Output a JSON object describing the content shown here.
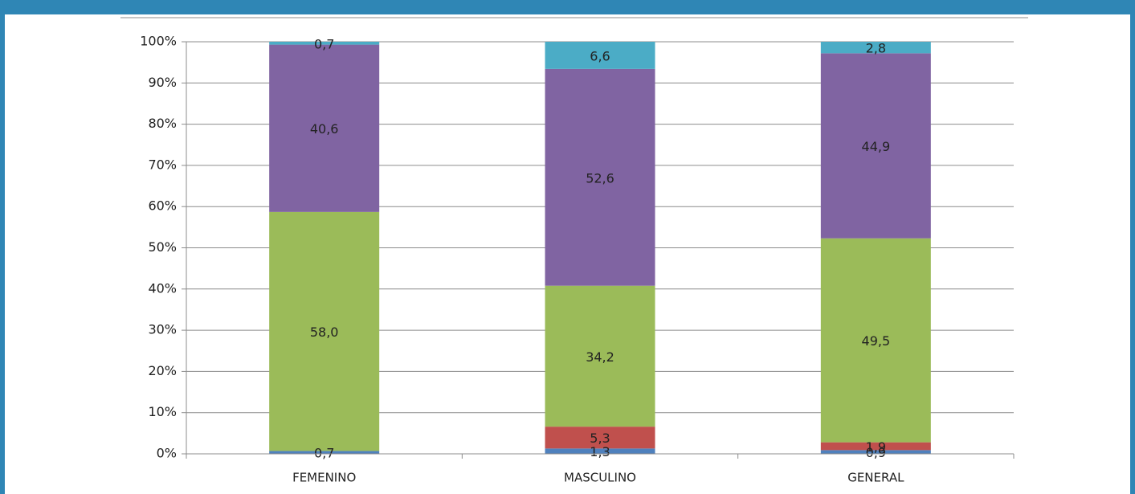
{
  "chart_data": {
    "type": "stacked_bar",
    "categories": [
      "FEMENINO",
      "MASCULINO",
      "GENERAL"
    ],
    "series": [
      {
        "color": "#4f81bd",
        "values": [
          0.7,
          1.3,
          0.9
        ],
        "value_labels": [
          "0,7",
          "1,3",
          "0,9"
        ]
      },
      {
        "color": "#c0504d",
        "values": [
          null,
          5.3,
          1.9
        ],
        "value_labels": [
          null,
          "5,3",
          "1,9"
        ]
      },
      {
        "color": "#9bbb59",
        "values": [
          58.0,
          34.2,
          49.5
        ],
        "value_labels": [
          "58,0",
          "34,2",
          "49,5"
        ]
      },
      {
        "color": "#8064a2",
        "values": [
          40.6,
          52.6,
          44.9
        ],
        "value_labels": [
          "40,6",
          "52,6",
          "44,9"
        ]
      },
      {
        "color": "#4bacc6",
        "values": [
          0.7,
          6.6,
          2.8
        ],
        "value_labels": [
          "0,7",
          "6,6",
          "2,8"
        ]
      }
    ],
    "ylim": [
      0,
      100
    ],
    "yticks": [
      {
        "value": 0,
        "label": "0%"
      },
      {
        "value": 10,
        "label": "10%"
      },
      {
        "value": 20,
        "label": "20%"
      },
      {
        "value": 30,
        "label": "30%"
      },
      {
        "value": 40,
        "label": "40%"
      },
      {
        "value": 50,
        "label": "50%"
      },
      {
        "value": 60,
        "label": "60%"
      },
      {
        "value": 70,
        "label": "70%"
      },
      {
        "value": 80,
        "label": "80%"
      },
      {
        "value": 90,
        "label": "90%"
      },
      {
        "value": 100,
        "label": "100%"
      }
    ],
    "grid": true
  }
}
